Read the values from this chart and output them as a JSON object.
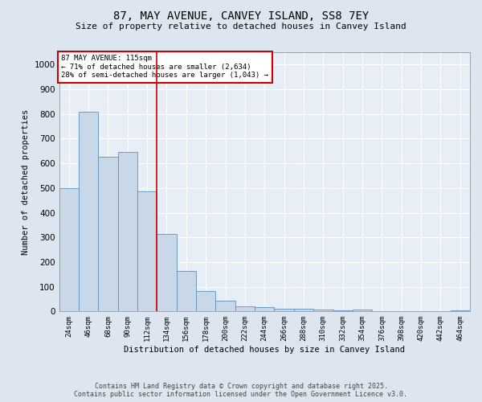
{
  "title": "87, MAY AVENUE, CANVEY ISLAND, SS8 7EY",
  "subtitle": "Size of property relative to detached houses in Canvey Island",
  "xlabel": "Distribution of detached houses by size in Canvey Island",
  "ylabel": "Number of detached properties",
  "categories": [
    "24sqm",
    "46sqm",
    "68sqm",
    "90sqm",
    "112sqm",
    "134sqm",
    "156sqm",
    "178sqm",
    "200sqm",
    "222sqm",
    "244sqm",
    "266sqm",
    "288sqm",
    "310sqm",
    "332sqm",
    "354sqm",
    "376sqm",
    "398sqm",
    "420sqm",
    "442sqm",
    "464sqm"
  ],
  "values": [
    500,
    810,
    625,
    645,
    485,
    313,
    163,
    82,
    44,
    22,
    18,
    10,
    10,
    7,
    3,
    8,
    1,
    2,
    0,
    0,
    5
  ],
  "bar_color": "#c8d8e8",
  "bar_edge_color": "#5a90c0",
  "vline_color": "#cc0000",
  "annotation_title": "87 MAY AVENUE: 115sqm",
  "annotation_line1": "← 71% of detached houses are smaller (2,634)",
  "annotation_line2": "28% of semi-detached houses are larger (1,043) →",
  "annotation_box_color": "#cc0000",
  "ylim": [
    0,
    1050
  ],
  "yticks": [
    0,
    100,
    200,
    300,
    400,
    500,
    600,
    700,
    800,
    900,
    1000
  ],
  "footer_line1": "Contains HM Land Registry data © Crown copyright and database right 2025.",
  "footer_line2": "Contains public sector information licensed under the Open Government Licence v3.0.",
  "background_color": "#dde6f0",
  "plot_bg_color": "#e8eef6"
}
